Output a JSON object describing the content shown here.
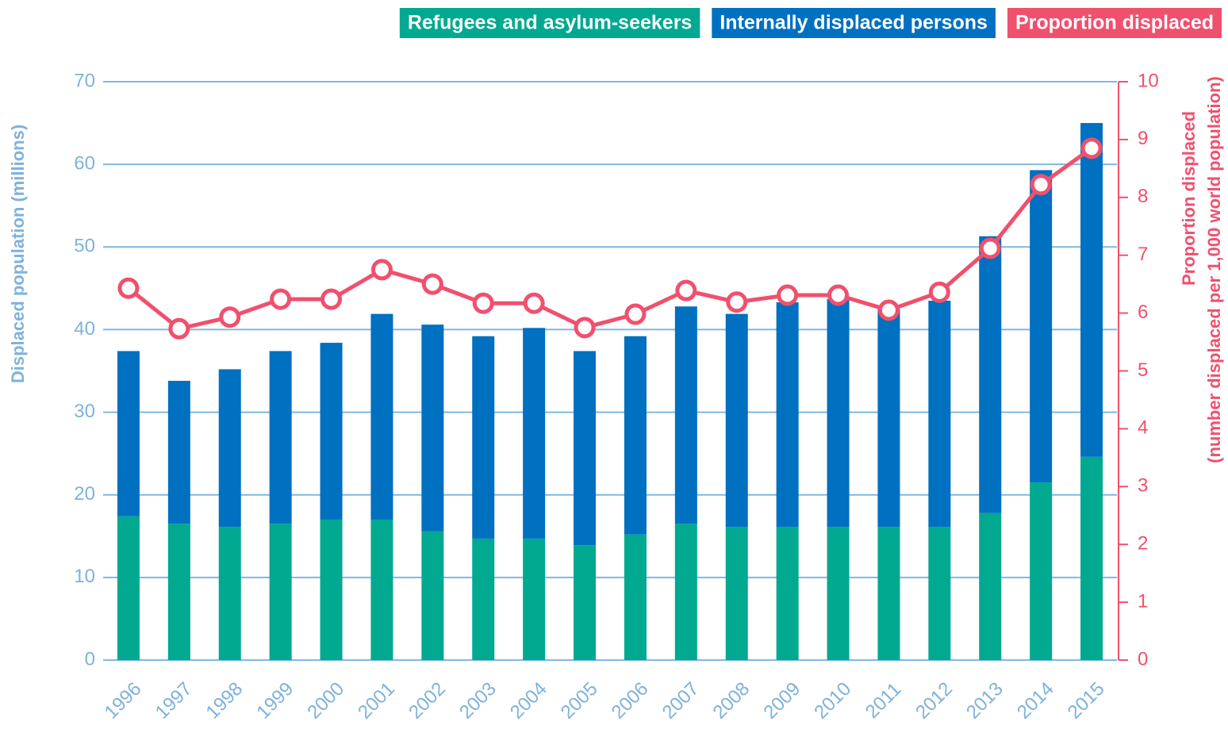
{
  "chart_data": {
    "type": "bar",
    "categories": [
      "1996",
      "1997",
      "1998",
      "1999",
      "2000",
      "2001",
      "2002",
      "2003",
      "2004",
      "2005",
      "2006",
      "2007",
      "2008",
      "2009",
      "2010",
      "2011",
      "2012",
      "2013",
      "2014",
      "2015"
    ],
    "stacked": true,
    "series": [
      {
        "name": "Refugees and asylum-seekers",
        "color": "#00a98f",
        "type": "bar",
        "values": [
          17.4,
          16.5,
          16.1,
          16.5,
          17.0,
          17.0,
          15.6,
          14.7,
          14.7,
          13.9,
          15.2,
          16.5,
          16.1,
          16.1,
          16.1,
          16.1,
          16.1,
          17.8,
          21.5,
          24.6
        ]
      },
      {
        "name": "Internally displaced persons",
        "color": "#0070c0",
        "type": "bar",
        "values": [
          20.0,
          17.3,
          19.1,
          20.9,
          21.4,
          24.9,
          25.0,
          24.5,
          25.5,
          23.5,
          24.0,
          26.3,
          25.8,
          27.2,
          27.6,
          26.4,
          27.4,
          33.5,
          37.8,
          40.4
        ]
      },
      {
        "name": "Proportion displaced",
        "color": "#f0506e",
        "type": "line",
        "axis": "y2",
        "values": [
          6.43,
          5.73,
          5.93,
          6.24,
          6.24,
          6.75,
          6.5,
          6.17,
          6.17,
          5.75,
          5.98,
          6.39,
          6.19,
          6.31,
          6.31,
          6.05,
          6.36,
          7.12,
          8.22,
          8.85
        ]
      }
    ],
    "ylabel": "Displaced population (millions)",
    "y2label": [
      "Proportion displaced",
      "(number displaced per 1,000 world population)"
    ],
    "ylim": [
      0,
      70
    ],
    "yticks": [
      0,
      10,
      20,
      30,
      40,
      50,
      60,
      70
    ],
    "y2lim": [
      0,
      10
    ],
    "y2ticks": [
      0,
      1,
      2,
      3,
      4,
      5,
      6,
      7,
      8,
      9,
      10
    ],
    "grid": true,
    "legend": "top-right"
  }
}
